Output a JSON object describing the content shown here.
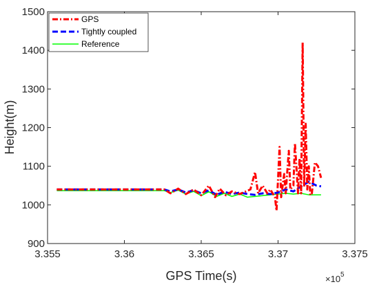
{
  "chart_data": {
    "type": "line",
    "title": "",
    "xlabel": "GPS Time(s)",
    "ylabel": "Height(m)",
    "x_scale_label": "×10",
    "x_scale_exponent": "5",
    "xlim": [
      3.355,
      3.375
    ],
    "ylim": [
      900,
      1500
    ],
    "x_ticks": [
      3.355,
      3.36,
      3.365,
      3.37,
      3.375
    ],
    "x_tick_labels": [
      "3.355",
      "3.36",
      "3.365",
      "3.37",
      "3.375"
    ],
    "y_ticks": [
      900,
      1000,
      1100,
      1200,
      1300,
      1400,
      1500
    ],
    "y_tick_labels": [
      "900",
      "1000",
      "1100",
      "1200",
      "1300",
      "1400",
      "1500"
    ],
    "grid": false,
    "legend_position": "top-left",
    "colors": {
      "gps": "#ff0000",
      "tightly": "#0000ff",
      "reference": "#00ff00",
      "axis": "#262626"
    },
    "series": [
      {
        "name": "GPS",
        "style": "dash-dot",
        "x": [
          3.3556,
          3.3626,
          3.363,
          3.3635,
          3.364,
          3.3645,
          3.365,
          3.3655,
          3.3659,
          3.3662,
          3.3666,
          3.367,
          3.3675,
          3.3682,
          3.3685,
          3.3687,
          3.369,
          3.3693,
          3.3695,
          3.3698,
          3.3699,
          3.3701,
          3.3702,
          3.3704,
          3.3705,
          3.3707,
          3.3708,
          3.371,
          3.3711,
          3.3713,
          3.3714,
          3.3715,
          3.3716,
          3.3717,
          3.3718,
          3.3719,
          3.372,
          3.3721,
          3.3722,
          3.3724,
          3.3726,
          3.3728
        ],
        "y": [
          1040,
          1040,
          1030,
          1042,
          1028,
          1040,
          1025,
          1050,
          1020,
          1042,
          1025,
          1035,
          1028,
          1040,
          1085,
          1030,
          1050,
          1030,
          1040,
          1020,
          985,
          1150,
          1020,
          1080,
          1030,
          1140,
          1040,
          1050,
          1160,
          1030,
          1120,
          1030,
          1420,
          1050,
          1210,
          1040,
          1100,
          1025,
          1030,
          1110,
          1100,
          1070
        ]
      },
      {
        "name": "Tightly coupled",
        "style": "dashed",
        "x": [
          3.3556,
          3.3626,
          3.363,
          3.3635,
          3.364,
          3.3645,
          3.365,
          3.3655,
          3.366,
          3.3665,
          3.367,
          3.3675,
          3.368,
          3.3685,
          3.369,
          3.3695,
          3.37,
          3.3705,
          3.371,
          3.3715,
          3.372,
          3.3725,
          3.3728
        ],
        "y": [
          1040,
          1040,
          1035,
          1040,
          1032,
          1038,
          1030,
          1038,
          1026,
          1034,
          1028,
          1032,
          1028,
          1026,
          1030,
          1028,
          1032,
          1040,
          1035,
          1048,
          1060,
          1050,
          1048
        ]
      },
      {
        "name": "Reference",
        "style": "solid",
        "x": [
          3.3556,
          3.3626,
          3.363,
          3.3635,
          3.364,
          3.3645,
          3.365,
          3.3655,
          3.366,
          3.3665,
          3.367,
          3.3675,
          3.368,
          3.3685,
          3.369,
          3.3695,
          3.37,
          3.3705,
          3.371,
          3.3715,
          3.372,
          3.3725,
          3.3728
        ],
        "y": [
          1037,
          1037,
          1032,
          1038,
          1028,
          1035,
          1024,
          1034,
          1022,
          1030,
          1022,
          1028,
          1020,
          1022,
          1024,
          1026,
          1028,
          1030,
          1028,
          1030,
          1026,
          1026,
          1026
        ]
      }
    ]
  }
}
